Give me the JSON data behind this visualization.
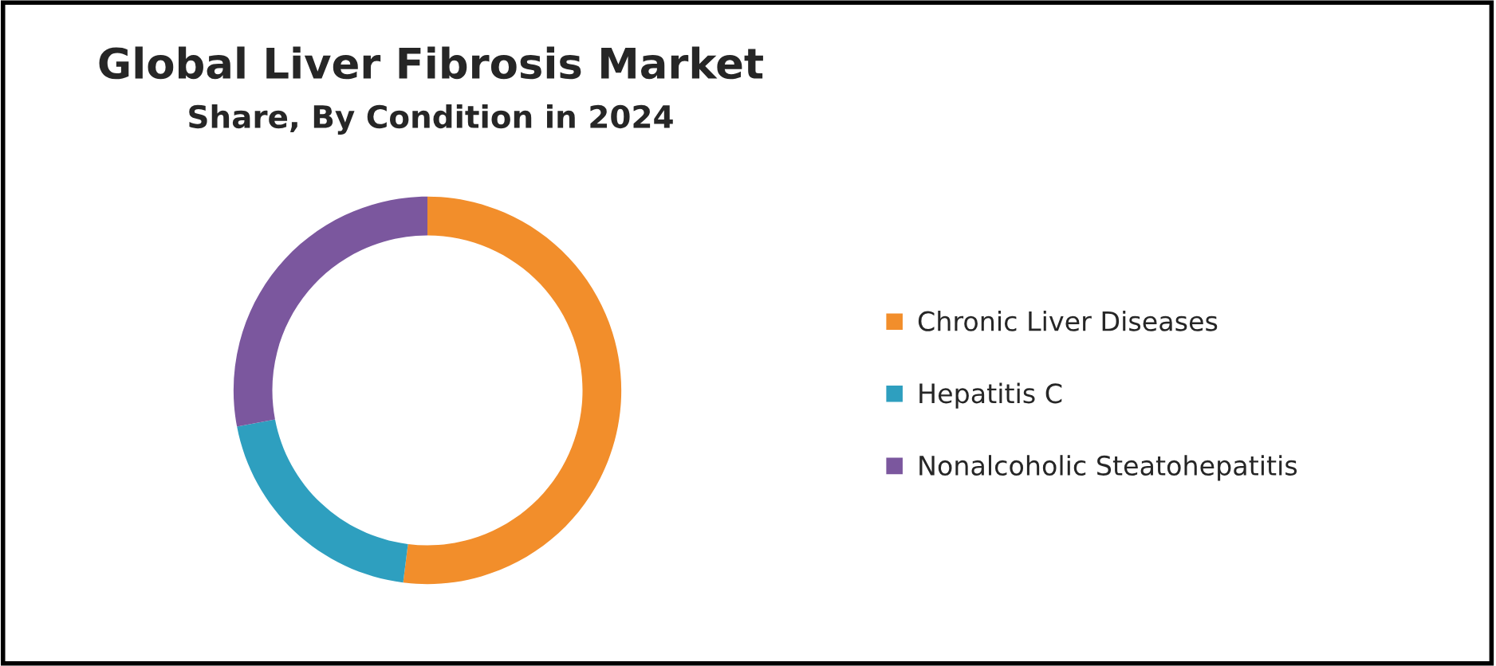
{
  "chart_data": {
    "type": "donut",
    "title": "Global Liver Fibrosis Market",
    "subtitle": "Share, By Condition in 2024",
    "categories": [
      "Chronic Liver Diseases",
      "Hepatitis C",
      "Nonalcoholic Steatohepatitis"
    ],
    "values": [
      52,
      20,
      28
    ],
    "colors": [
      "#f28e2b",
      "#2e9fbf",
      "#7b579e"
    ],
    "legend": "right"
  }
}
